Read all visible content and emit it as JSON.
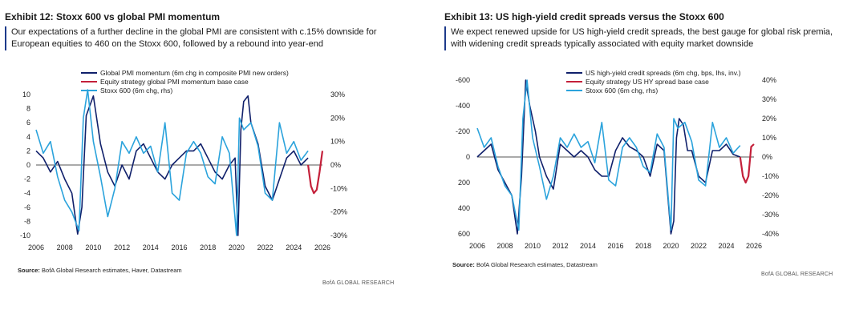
{
  "panels": [
    {
      "title": "Exhibit 12: Stoxx 600 vs global PMI momentum",
      "description": "Our expectations of a further decline in the global PMI are consistent with c.15% downside for European equities to 460 on the Stoxx 600, followed by a rebound into year-end",
      "source_label": "Source:",
      "source_text": " BofA Global Research estimates, Haver, Datastream",
      "brand": "BofA GLOBAL RESEARCH"
    },
    {
      "title": "Exhibit 13: US high-yield credit spreads versus the Stoxx 600",
      "description": "We expect renewed upside for US high-yield credit spreads, the best gauge for global risk premia, with widening credit spreads typically associated with equity market downside",
      "source_label": "Source:",
      "source_text": " BofA Global Research estimates, Datastream",
      "brand": "BofA GLOBAL RESEARCH"
    }
  ],
  "chart_data": [
    {
      "type": "line",
      "legend_position": "top",
      "x_ticks": [
        "2006",
        "2008",
        "2010",
        "2012",
        "2014",
        "2016",
        "2018",
        "2020",
        "2022",
        "2024",
        "2026"
      ],
      "xlim": [
        2006,
        2026
      ],
      "y_left": {
        "ticks": [
          "10",
          "8",
          "6",
          "4",
          "2",
          "0",
          "-2",
          "-4",
          "-6",
          "-8",
          "-10"
        ],
        "lim": [
          -10,
          10
        ]
      },
      "y_right": {
        "ticks": [
          "30%",
          "20%",
          "10%",
          "0%",
          "-10%",
          "-20%",
          "-30%"
        ],
        "lim": [
          -30,
          30
        ]
      },
      "series": [
        {
          "name": "Global PMI momentum (6m chg in composite PMI new orders)",
          "axis": "left",
          "color": "#10206b",
          "x": [
            2006,
            2006.5,
            2007,
            2007.5,
            2008,
            2008.5,
            2008.9,
            2009.2,
            2009.5,
            2010,
            2010.5,
            2011,
            2011.5,
            2012,
            2012.5,
            2013,
            2013.5,
            2014,
            2014.5,
            2015,
            2015.5,
            2016,
            2016.5,
            2017,
            2017.5,
            2018,
            2018.5,
            2019,
            2019.5,
            2019.9,
            2020.1,
            2020.3,
            2020.5,
            2020.8,
            2021,
            2021.5,
            2022,
            2022.5,
            2023,
            2023.5,
            2024,
            2024.5,
            2025
          ],
          "y": [
            2,
            1,
            -1,
            0.5,
            -2,
            -4,
            -9.8,
            -6,
            7,
            9.8,
            3,
            -1,
            -3,
            0,
            -2,
            2,
            3,
            1,
            -1,
            -2,
            0,
            1,
            2,
            2,
            3,
            1,
            -1,
            -2,
            0,
            1,
            -10,
            5,
            9,
            9.8,
            6,
            3,
            -3,
            -5,
            -2,
            1,
            2,
            0,
            1
          ]
        },
        {
          "name": "Equity strategy global PMI momentum base case",
          "axis": "left",
          "color": "#c4203a",
          "x": [
            2025,
            2025.2,
            2025.4,
            2025.6,
            2025.8,
            2026
          ],
          "y": [
            0,
            -3,
            -4,
            -3.5,
            -1,
            2
          ]
        },
        {
          "name": "Stoxx 600 (6m chg, rhs)",
          "axis": "right",
          "color": "#2ba3dc",
          "x": [
            2006,
            2006.5,
            2007,
            2007.5,
            2008,
            2008.5,
            2009,
            2009.3,
            2009.6,
            2010,
            2010.5,
            2011,
            2011.5,
            2012,
            2012.5,
            2013,
            2013.5,
            2014,
            2014.5,
            2015,
            2015.5,
            2016,
            2016.5,
            2017,
            2017.5,
            2018,
            2018.5,
            2019,
            2019.5,
            2020,
            2020.2,
            2020.5,
            2021,
            2021.5,
            2022,
            2022.5,
            2023,
            2023.5,
            2024,
            2024.5,
            2025
          ],
          "y": [
            15,
            5,
            10,
            -5,
            -15,
            -20,
            -28,
            20,
            32,
            10,
            -5,
            -22,
            -10,
            10,
            5,
            12,
            5,
            8,
            -3,
            18,
            -12,
            -15,
            5,
            10,
            5,
            -5,
            -8,
            12,
            5,
            -30,
            20,
            15,
            18,
            8,
            -12,
            -15,
            18,
            5,
            10,
            2,
            6
          ]
        }
      ]
    },
    {
      "type": "line",
      "legend_position": "top",
      "x_ticks": [
        "2006",
        "2008",
        "2010",
        "2012",
        "2014",
        "2016",
        "2018",
        "2020",
        "2022",
        "2024",
        "2026"
      ],
      "xlim": [
        2006,
        2026
      ],
      "y_left": {
        "ticks": [
          "-600",
          "-400",
          "-200",
          "0",
          "200",
          "400",
          "600"
        ],
        "lim": [
          -600,
          600
        ],
        "inverted": true
      },
      "y_right": {
        "ticks": [
          "40%",
          "30%",
          "20%",
          "10%",
          "0%",
          "-10%",
          "-20%",
          "-30%",
          "-40%"
        ],
        "lim": [
          -40,
          40
        ]
      },
      "series": [
        {
          "name": "US high-yield credit spreads (6m chg, bps, lhs, inv.)",
          "axis": "left",
          "color": "#10206b",
          "x": [
            2006,
            2006.5,
            2007,
            2007.5,
            2008,
            2008.5,
            2008.9,
            2009.2,
            2009.5,
            2009.8,
            2010.2,
            2010.5,
            2011,
            2011.5,
            2012,
            2012.5,
            2013,
            2013.5,
            2014,
            2014.5,
            2015,
            2015.5,
            2016,
            2016.5,
            2017,
            2017.5,
            2018,
            2018.5,
            2019,
            2019.5,
            2020,
            2020.2,
            2020.4,
            2020.6,
            2020.9,
            2021.2,
            2021.5,
            2022,
            2022.5,
            2023,
            2023.5,
            2024,
            2024.5,
            2025
          ],
          "y": [
            0,
            -50,
            -100,
            100,
            200,
            300,
            600,
            150,
            -600,
            -400,
            -200,
            0,
            150,
            250,
            -100,
            -50,
            0,
            -50,
            0,
            100,
            150,
            150,
            -50,
            -150,
            -80,
            -50,
            0,
            150,
            -100,
            -50,
            600,
            500,
            -150,
            -300,
            -250,
            -50,
            -50,
            150,
            200,
            -50,
            -50,
            -100,
            -20,
            0
          ]
        },
        {
          "name": "Equity strategy US HY spread base case",
          "axis": "left",
          "color": "#c4203a",
          "x": [
            2025,
            2025.2,
            2025.4,
            2025.6,
            2025.8,
            2026
          ],
          "y": [
            0,
            150,
            200,
            150,
            -80,
            -100
          ]
        },
        {
          "name": "Stoxx 600 (6m chg, rhs)",
          "axis": "right",
          "color": "#2ba3dc",
          "x": [
            2006,
            2006.5,
            2007,
            2007.5,
            2008,
            2008.5,
            2009,
            2009.3,
            2009.6,
            2010,
            2010.5,
            2011,
            2011.5,
            2012,
            2012.5,
            2013,
            2013.5,
            2014,
            2014.5,
            2015,
            2015.5,
            2016,
            2016.5,
            2017,
            2017.5,
            2018,
            2018.5,
            2019,
            2019.5,
            2020,
            2020.2,
            2020.5,
            2021,
            2021.5,
            2022,
            2022.5,
            2023,
            2023.5,
            2024,
            2024.5,
            2025
          ],
          "y": [
            15,
            5,
            10,
            -5,
            -15,
            -20,
            -38,
            20,
            40,
            10,
            -5,
            -22,
            -10,
            10,
            5,
            12,
            5,
            8,
            -3,
            18,
            -12,
            -15,
            5,
            10,
            5,
            -5,
            -8,
            12,
            5,
            -38,
            20,
            15,
            18,
            8,
            -12,
            -15,
            18,
            5,
            10,
            2,
            6
          ]
        }
      ]
    }
  ]
}
